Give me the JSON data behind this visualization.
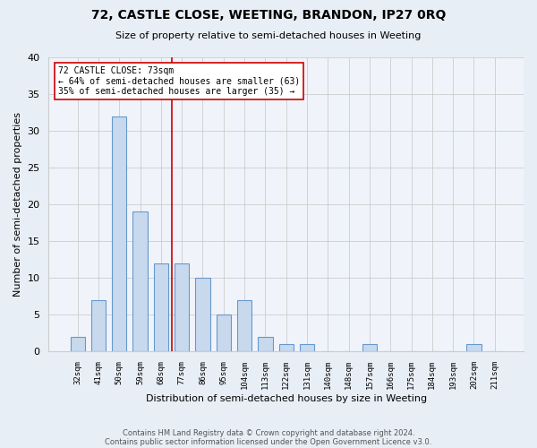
{
  "title": "72, CASTLE CLOSE, WEETING, BRANDON, IP27 0RQ",
  "subtitle": "Size of property relative to semi-detached houses in Weeting",
  "xlabel": "Distribution of semi-detached houses by size in Weeting",
  "ylabel": "Number of semi-detached properties",
  "categories": [
    "32sqm",
    "41sqm",
    "50sqm",
    "59sqm",
    "68sqm",
    "77sqm",
    "86sqm",
    "95sqm",
    "104sqm",
    "113sqm",
    "122sqm",
    "131sqm",
    "140sqm",
    "148sqm",
    "157sqm",
    "166sqm",
    "175sqm",
    "184sqm",
    "193sqm",
    "202sqm",
    "211sqm"
  ],
  "values": [
    2,
    7,
    32,
    19,
    12,
    12,
    10,
    5,
    7,
    2,
    1,
    1,
    0,
    0,
    1,
    0,
    0,
    0,
    0,
    1,
    0
  ],
  "bar_color": "#c8d9ee",
  "bar_edge_color": "#6699cc",
  "property_size": "73sqm",
  "smaller_pct": 64,
  "smaller_count": 63,
  "larger_pct": 35,
  "larger_count": 35,
  "ylim": [
    0,
    40
  ],
  "footer1": "Contains HM Land Registry data © Crown copyright and database right 2024.",
  "footer2": "Contains public sector information licensed under the Open Government Licence v3.0.",
  "background_color": "#e8eef5",
  "plot_bg_color": "#f0f4fa",
  "grid_color": "#cccccc"
}
